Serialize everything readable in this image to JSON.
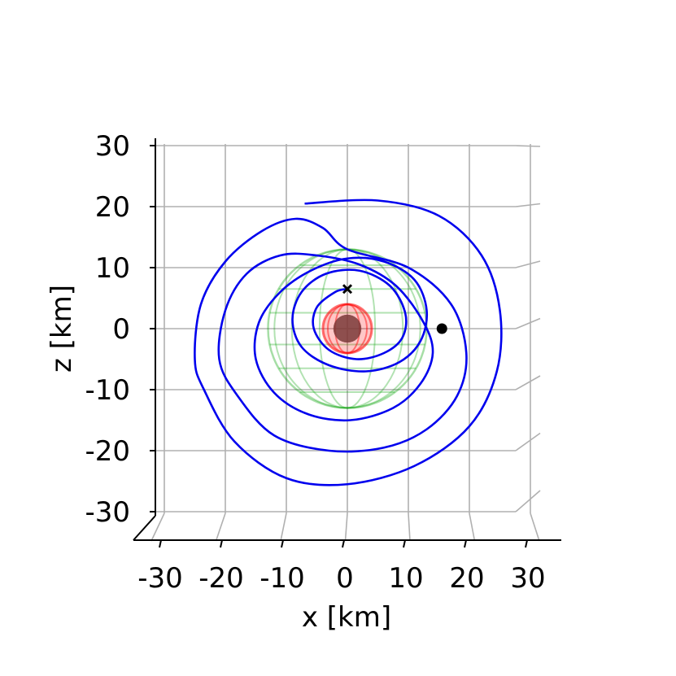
{
  "chart_data": {
    "type": "line",
    "projection": "3d-orbit-plot-viewed-along-y-axis",
    "xlabel": "x [km]",
    "zlabel": "z [km]",
    "xlim": [
      -30,
      30
    ],
    "zlim": [
      -30,
      30
    ],
    "x_ticks": [
      "-30",
      "-20",
      "-10",
      "0",
      "10",
      "20",
      "30"
    ],
    "z_ticks": [
      "30",
      "20",
      "10",
      "0",
      "-10",
      "-20",
      "-30"
    ],
    "grid": true,
    "trajectory_color": "#0000ee",
    "trajectory_description": "multi-revolution orbit spiralling around the central body, loops ranging from about 8 km to 25 km radius",
    "orbit_points": [
      [
        -7,
        20.5
      ],
      [
        5,
        21
      ],
      [
        15,
        18.5
      ],
      [
        22,
        12
      ],
      [
        25,
        3
      ],
      [
        24.5,
        -7
      ],
      [
        20,
        -16
      ],
      [
        11,
        -22.5
      ],
      [
        0,
        -25.5
      ],
      [
        -10,
        -24.5
      ],
      [
        -18.5,
        -18.5
      ],
      [
        -23.5,
        -10
      ],
      [
        -25,
        -5
      ],
      [
        -24,
        4
      ],
      [
        -20,
        11
      ],
      [
        -14,
        16
      ],
      [
        -8.5,
        18
      ],
      [
        -4,
        16.5
      ],
      [
        0,
        13
      ],
      [
        10,
        10
      ],
      [
        17,
        4
      ],
      [
        19.5,
        -4
      ],
      [
        18,
        -11
      ],
      [
        13,
        -16.5
      ],
      [
        6,
        -19.5
      ],
      [
        -3,
        -20
      ],
      [
        -12,
        -17.5
      ],
      [
        -18,
        -11
      ],
      [
        -21,
        -5
      ],
      [
        -20,
        3
      ],
      [
        -16.5,
        9
      ],
      [
        -11,
        12
      ],
      [
        -5,
        12
      ],
      [
        2,
        10.5
      ],
      [
        8,
        7
      ],
      [
        12.5,
        1
      ],
      [
        14,
        -4
      ],
      [
        12,
        -9
      ],
      [
        7.5,
        -13
      ],
      [
        0.5,
        -15
      ],
      [
        -6.5,
        -14
      ],
      [
        -12,
        -10.5
      ],
      [
        -15,
        -5
      ],
      [
        -14.5,
        1
      ],
      [
        -11,
        6
      ],
      [
        -6,
        9.5
      ],
      [
        0,
        11.5
      ],
      [
        6,
        11
      ],
      [
        11,
        8
      ],
      [
        13,
        3
      ],
      [
        12,
        -2
      ],
      [
        8.5,
        -5.5
      ],
      [
        3,
        -7
      ],
      [
        -3,
        -6
      ],
      [
        -7.5,
        -3
      ],
      [
        -9,
        1.5
      ],
      [
        -7.5,
        6
      ],
      [
        -3.5,
        9
      ],
      [
        2,
        9.5
      ],
      [
        7,
        7
      ],
      [
        9.5,
        2.5
      ],
      [
        9,
        -1.5
      ],
      [
        6,
        -4
      ],
      [
        1.5,
        -5
      ],
      [
        -3,
        -3.5
      ],
      [
        -5.5,
        0
      ],
      [
        -5,
        3.5
      ],
      [
        -2,
        6
      ],
      [
        0,
        6.5
      ]
    ],
    "markers": [
      {
        "name": "start",
        "symbol": "x",
        "x": 0,
        "z": 6.5
      },
      {
        "name": "end",
        "symbol": "dot",
        "x": 15.5,
        "z": 0
      }
    ],
    "bodies": [
      {
        "name": "central body",
        "x": 0,
        "z": 0,
        "radius": 2.3,
        "color": "#7a3a38"
      },
      {
        "name": "red inner sphere",
        "x": 0,
        "z": 0,
        "radius": 4,
        "color": "#ff0000"
      },
      {
        "name": "green outer sphere",
        "x": 0,
        "z": 0,
        "radius": 13,
        "color": "#00a000"
      }
    ]
  }
}
